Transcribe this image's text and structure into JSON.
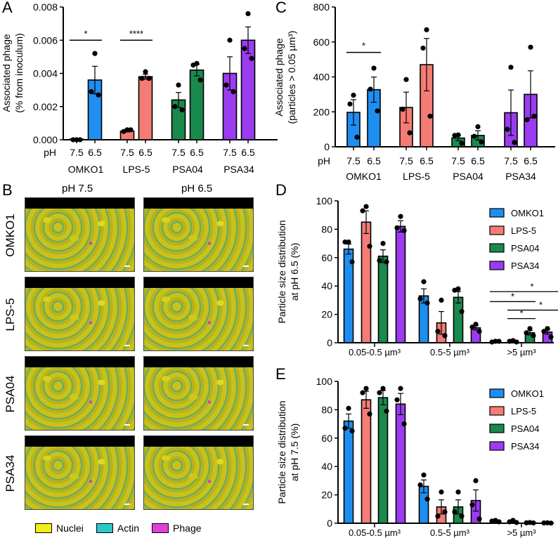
{
  "panel_letters": {
    "A": "A",
    "B": "B",
    "C": "C",
    "D": "D",
    "E": "E"
  },
  "panel_b": {
    "col_headers": [
      "pH 7.5",
      "pH 6.5"
    ],
    "row_labels": [
      "OMKO1",
      "LPS-5",
      "PSA04",
      "PSA34"
    ],
    "legend": [
      {
        "label": "Nuclei",
        "color": "#f2ec1a"
      },
      {
        "label": "Actin",
        "color": "#2cc8c8"
      },
      {
        "label": "Phage",
        "color": "#e040d8"
      }
    ]
  },
  "colors": {
    "OMKO1": "#1e8ff0",
    "LPS-5": "#f47c74",
    "PSA04": "#1a8a4c",
    "PSA34": "#9b3cf0"
  },
  "chart_data": [
    {
      "id": "A",
      "type": "bar",
      "ylabel": [
        "Associated phage",
        "(% from inoculum)"
      ],
      "ylim": [
        0,
        0.008
      ],
      "yticks": [
        "0.000",
        "0.002",
        "0.004",
        "0.006",
        "0.008"
      ],
      "ytick_values": [
        0,
        0.002,
        0.004,
        0.006,
        0.008
      ],
      "x_prefix": "pH",
      "groups": [
        "OMKO1",
        "LPS-5",
        "PSA04",
        "PSA34"
      ],
      "subcategories": [
        "7.5",
        "6.5"
      ],
      "bars": [
        {
          "group": "OMKO1",
          "ph": "7.5",
          "mean": 1e-05,
          "sem": 0.0,
          "points": [
            0.0,
            0.0,
            0.0
          ]
        },
        {
          "group": "OMKO1",
          "ph": "6.5",
          "mean": 0.0036,
          "sem": 0.00083,
          "points": [
            0.0052,
            0.0029,
            0.0027
          ]
        },
        {
          "group": "LPS-5",
          "ph": "7.5",
          "mean": 0.00052,
          "sem": 5e-05,
          "points": [
            0.0006,
            0.0005,
            0.0006
          ]
        },
        {
          "group": "LPS-5",
          "ph": "6.5",
          "mean": 0.0038,
          "sem": 0.00015,
          "points": [
            0.0041,
            0.0037,
            0.0037
          ]
        },
        {
          "group": "PSA04",
          "ph": "7.5",
          "mean": 0.0024,
          "sem": 0.00045,
          "points": [
            0.0033,
            0.002,
            0.0018
          ]
        },
        {
          "group": "PSA04",
          "ph": "6.5",
          "mean": 0.0042,
          "sem": 0.00035,
          "points": [
            0.0046,
            0.0045,
            0.0036
          ]
        },
        {
          "group": "PSA34",
          "ph": "7.5",
          "mean": 0.004,
          "sem": 0.001,
          "points": [
            0.006,
            0.0033,
            0.0029
          ]
        },
        {
          "group": "PSA34",
          "ph": "6.5",
          "mean": 0.006,
          "sem": 0.0008,
          "points": [
            0.0076,
            0.0055,
            0.0049
          ]
        }
      ],
      "significance": [
        {
          "from": 0,
          "to": 1,
          "y": 0.006,
          "label": "*"
        },
        {
          "from": 2,
          "to": 3,
          "y": 0.006,
          "label": "****"
        }
      ]
    },
    {
      "id": "C",
      "type": "bar",
      "ylabel": [
        "Associated phage",
        "(particles > 0.05 µm³)"
      ],
      "ylim": [
        0,
        800
      ],
      "yticks": [
        "0",
        "200",
        "400",
        "600",
        "800"
      ],
      "ytick_values": [
        0,
        200,
        400,
        600,
        800
      ],
      "x_prefix": "pH",
      "groups": [
        "OMKO1",
        "LPS-5",
        "PSA04",
        "PSA34"
      ],
      "subcategories": [
        "7.5",
        "6.5"
      ],
      "bars": [
        {
          "group": "OMKO1",
          "ph": "7.5",
          "mean": 197,
          "sem": 73,
          "points": [
            295,
            245,
            55
          ]
        },
        {
          "group": "OMKO1",
          "ph": "6.5",
          "mean": 327,
          "sem": 72,
          "points": [
            450,
            330,
            205
          ]
        },
        {
          "group": "LPS-5",
          "ph": "7.5",
          "mean": 225,
          "sem": 88,
          "points": [
            385,
            215,
            80
          ]
        },
        {
          "group": "LPS-5",
          "ph": "6.5",
          "mean": 470,
          "sem": 150,
          "points": [
            670,
            565,
            175
          ]
        },
        {
          "group": "PSA04",
          "ph": "7.5",
          "mean": 50,
          "sem": 15,
          "points": [
            68,
            65,
            20
          ]
        },
        {
          "group": "PSA04",
          "ph": "6.5",
          "mean": 65,
          "sem": 27,
          "points": [
            115,
            60,
            28
          ]
        },
        {
          "group": "PSA34",
          "ph": "7.5",
          "mean": 195,
          "sem": 130,
          "points": [
            455,
            100,
            25
          ]
        },
        {
          "group": "PSA34",
          "ph": "6.5",
          "mean": 300,
          "sem": 135,
          "points": [
            570,
            155,
            175
          ]
        }
      ],
      "significance": [
        {
          "from": 0,
          "to": 1,
          "y": 540,
          "label": "*"
        }
      ]
    },
    {
      "id": "D",
      "type": "bar",
      "ylabel": [
        "Particle size distribution",
        "at pH 6.5 (%)"
      ],
      "ylim": [
        0,
        100
      ],
      "yticks": [
        "0",
        "20",
        "40",
        "60",
        "80",
        "100"
      ],
      "ytick_values": [
        0,
        20,
        40,
        60,
        80,
        100
      ],
      "categories": [
        "0.05-0.5 µm³",
        "0.5-5 µm³",
        ">5 µm³"
      ],
      "legend": [
        "OMKO1",
        "LPS-5",
        "PSA04",
        "PSA34"
      ],
      "series": [
        {
          "name": "OMKO1",
          "mean": [
            66,
            33,
            0.8
          ],
          "sem": [
            3.5,
            5,
            0.2
          ],
          "points": [
            [
              71,
              71,
              57
            ],
            [
              43,
              31,
              28
            ],
            [
              1,
              0.5,
              1
            ]
          ]
        },
        {
          "name": "LPS-5",
          "mean": [
            85,
            14,
            0.9
          ],
          "sem": [
            8,
            8,
            0.3
          ],
          "points": [
            [
              96,
              93,
              68
            ],
            [
              30,
              8,
              5
            ],
            [
              1.5,
              1,
              0.5
            ]
          ]
        },
        {
          "name": "PSA04",
          "mean": [
            61,
            32,
            7
          ],
          "sem": [
            4.5,
            4,
            1.5
          ],
          "points": [
            [
              70,
              58,
              57
            ],
            [
              38,
              37,
              22
            ],
            [
              10,
              7,
              5
            ]
          ]
        },
        {
          "name": "PSA34",
          "mean": [
            82,
            10.5,
            7.5
          ],
          "sem": [
            4,
            1.5,
            1.5
          ],
          "points": [
            [
              89,
              81,
              79
            ],
            [
              13,
              11,
              8
            ],
            [
              10,
              8,
              4
            ]
          ]
        }
      ],
      "significance": [
        {
          "category": 2,
          "from": 0,
          "to": 3,
          "y": 36,
          "label": "*"
        },
        {
          "category": 2,
          "from": 0,
          "to": 2,
          "y": 29,
          "label": "*"
        },
        {
          "category": 2,
          "from": 1,
          "to": 3,
          "y": 23,
          "label": "*"
        },
        {
          "category": 2,
          "from": 1,
          "to": 2,
          "y": 17,
          "label": "*"
        }
      ]
    },
    {
      "id": "E",
      "type": "bar",
      "ylabel": [
        "Particle size distribution",
        "at pH 7.5 (%)"
      ],
      "ylim": [
        0,
        100
      ],
      "yticks": [
        "0",
        "20",
        "40",
        "60",
        "80",
        "100"
      ],
      "ytick_values": [
        0,
        20,
        40,
        60,
        80,
        100
      ],
      "categories": [
        "0.05-0.5 µm³",
        "0.5-5 µm³",
        ">5 µm³"
      ],
      "legend": [
        "OMKO1",
        "LPS-5",
        "PSA04",
        "PSA34"
      ],
      "series": [
        {
          "name": "OMKO1",
          "mean": [
            72,
            26,
            1.5
          ],
          "sem": [
            5,
            4.5,
            0.3
          ],
          "points": [
            [
              81,
              67,
              65
            ],
            [
              34,
              27,
              17
            ],
            [
              2,
              1.5,
              1
            ]
          ]
        },
        {
          "name": "LPS-5",
          "mean": [
            87,
            11.5,
            1
          ],
          "sem": [
            6,
            5,
            0.4
          ],
          "points": [
            [
              95,
              92,
              77
            ],
            [
              22,
              5,
              8
            ],
            [
              2,
              1,
              0.5
            ]
          ]
        },
        {
          "name": "PSA04",
          "mean": [
            88.5,
            11.5,
            0.3
          ],
          "sem": [
            5,
            5,
            0.1
          ],
          "points": [
            [
              95,
              92,
              79
            ],
            [
              22,
              8,
              5
            ],
            [
              0.5,
              0.3,
              0.2
            ]
          ]
        },
        {
          "name": "PSA34",
          "mean": [
            84,
            16,
            0.2
          ],
          "sem": [
            7.5,
            7.5,
            0.1
          ],
          "points": [
            [
              95,
              87,
              70
            ],
            [
              30,
              13,
              3
            ],
            [
              0.3,
              0.2,
              0.1
            ]
          ]
        }
      ],
      "significance": []
    }
  ]
}
